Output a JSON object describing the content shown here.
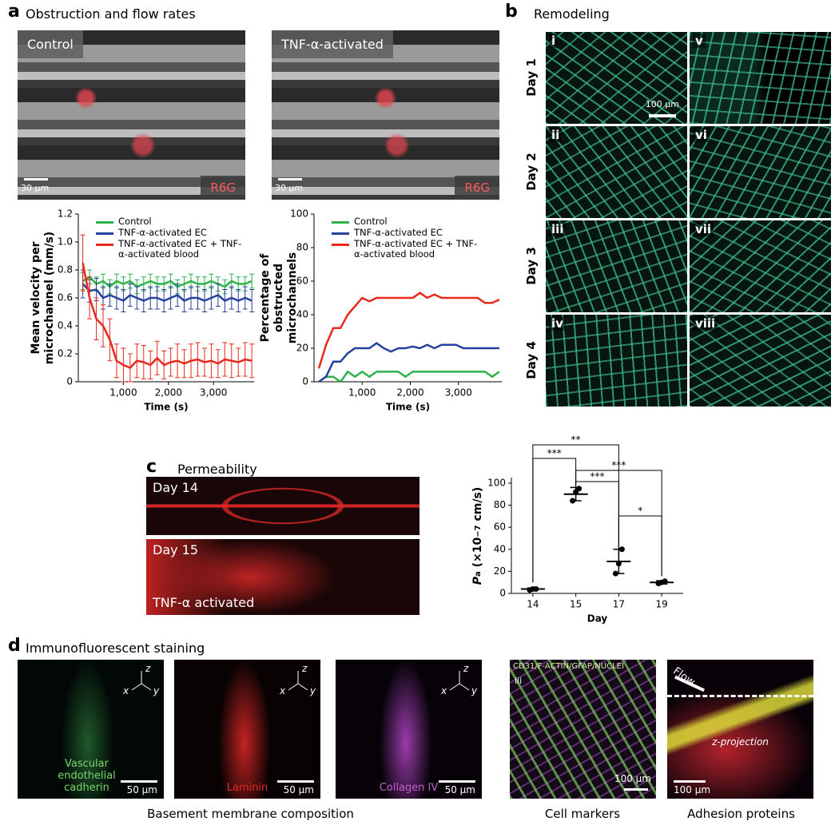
{
  "panel_a": {
    "letter": "a",
    "title": "Obstruction and flow rates",
    "images": [
      {
        "label": "Control",
        "scale": "30 μm",
        "stain": "R6G"
      },
      {
        "label": "TNF-α-activated",
        "scale": "30 μm",
        "stain": "R6G"
      }
    ]
  },
  "panel_b": {
    "letter": "b",
    "title": "Remodeling",
    "days": [
      "Day 1",
      "Day 2",
      "Day 3",
      "Day 4"
    ],
    "tiles": [
      "i",
      "ii",
      "iii",
      "iv",
      "v",
      "vi",
      "vii",
      "viii"
    ],
    "scale": "100 μm"
  },
  "panel_c": {
    "letter": "c",
    "title": "Permeability",
    "images": [
      {
        "label": "Day 14"
      },
      {
        "label": "Day 15",
        "note": "TNF-α activated"
      }
    ]
  },
  "panel_d": {
    "letter": "d",
    "title": "Immunofluorescent staining",
    "axes": [
      "z",
      "x",
      "y"
    ],
    "images": [
      {
        "label": "Vascular endothelial cadherin",
        "scale": "50 μm"
      },
      {
        "label": "Laminin",
        "scale": "50 μm"
      },
      {
        "label": "Collagen IV",
        "scale": "50 μm"
      },
      {
        "label": "iii",
        "markers": "CD31/F-ACTIN/GFAP/NUCLEI",
        "scale": "100 μm"
      },
      {
        "label": "Flow",
        "note": "z-projection",
        "scale": "100 μm"
      }
    ],
    "captions": [
      "Basement membrane composition",
      "Cell markers",
      "Adhesion proteins"
    ]
  },
  "chart_data": [
    {
      "type": "line",
      "x_label": "Time (s)",
      "y_label": "Mean velocity per microchannel (mm/s)",
      "x": [
        100,
        250,
        400,
        550,
        700,
        850,
        1000,
        1150,
        1300,
        1450,
        1600,
        1750,
        1900,
        2050,
        2200,
        2350,
        2500,
        2650,
        2800,
        2950,
        3100,
        3250,
        3400,
        3550,
        3700,
        3850
      ],
      "xlim": [
        0,
        3900
      ],
      "xticks": [
        {
          "value": 1000,
          "label": "1,000"
        },
        {
          "value": 2000,
          "label": "2,000"
        },
        {
          "value": 3000,
          "label": "3,000"
        }
      ],
      "ylim": [
        0,
        1.2
      ],
      "yticks": [
        0,
        0.2,
        0.4,
        0.6,
        0.8,
        {
          "value": 1,
          "label": "1.0"
        },
        1.2
      ],
      "series": [
        {
          "name": "Control",
          "color": "#2db34a",
          "values": [
            0.72,
            0.75,
            0.7,
            0.72,
            0.68,
            0.72,
            0.7,
            0.72,
            0.68,
            0.7,
            0.72,
            0.7,
            0.7,
            0.72,
            0.68,
            0.7,
            0.72,
            0.7,
            0.7,
            0.72,
            0.7,
            0.68,
            0.72,
            0.7,
            0.7,
            0.72
          ],
          "errors": [
            0.06,
            0.05,
            0.05,
            0.05,
            0.05,
            0.05,
            0.05,
            0.05,
            0.05,
            0.05,
            0.05,
            0.05,
            0.05,
            0.05,
            0.05,
            0.05,
            0.05,
            0.05,
            0.05,
            0.05,
            0.05,
            0.05,
            0.05,
            0.05,
            0.05,
            0.05
          ]
        },
        {
          "name": "TNF-α-activated EC",
          "color": "#2542a0",
          "values": [
            0.7,
            0.65,
            0.66,
            0.6,
            0.62,
            0.6,
            0.58,
            0.62,
            0.6,
            0.58,
            0.6,
            0.6,
            0.58,
            0.6,
            0.62,
            0.58,
            0.6,
            0.6,
            0.58,
            0.6,
            0.62,
            0.58,
            0.6,
            0.58,
            0.6,
            0.58
          ],
          "errors": [
            0.1,
            0.08,
            0.08,
            0.08,
            0.08,
            0.08,
            0.08,
            0.08,
            0.08,
            0.08,
            0.08,
            0.08,
            0.08,
            0.08,
            0.08,
            0.08,
            0.08,
            0.08,
            0.08,
            0.08,
            0.08,
            0.08,
            0.08,
            0.08,
            0.08,
            0.08
          ]
        },
        {
          "name": "TNF-α-activated EC + TNF-α-activated blood",
          "color": "#e8291c",
          "values": [
            0.85,
            0.6,
            0.45,
            0.4,
            0.3,
            0.15,
            0.12,
            0.1,
            0.15,
            0.14,
            0.12,
            0.17,
            0.12,
            0.14,
            0.15,
            0.13,
            0.15,
            0.16,
            0.14,
            0.15,
            0.13,
            0.16,
            0.15,
            0.14,
            0.16,
            0.15
          ],
          "errors": [
            0.2,
            0.15,
            0.15,
            0.15,
            0.15,
            0.12,
            0.12,
            0.1,
            0.12,
            0.12,
            0.1,
            0.12,
            0.1,
            0.1,
            0.12,
            0.1,
            0.12,
            0.12,
            0.1,
            0.12,
            0.1,
            0.12,
            0.12,
            0.1,
            0.12,
            0.12
          ]
        }
      ]
    },
    {
      "type": "line",
      "x_label": "Time (s)",
      "y_label": "Percentage of obstructed microchannels",
      "x": [
        100,
        250,
        400,
        550,
        700,
        850,
        1000,
        1150,
        1300,
        1450,
        1600,
        1750,
        1900,
        2050,
        2200,
        2350,
        2500,
        2650,
        2800,
        2950,
        3100,
        3250,
        3400,
        3550,
        3700,
        3850
      ],
      "xlim": [
        0,
        3900
      ],
      "xticks": [
        {
          "value": 1000,
          "label": "1,000"
        },
        {
          "value": 2000,
          "label": "2,000"
        },
        {
          "value": 3000,
          "label": "3,000"
        }
      ],
      "ylim": [
        0,
        100
      ],
      "yticks": [
        0,
        20,
        40,
        60,
        80,
        100
      ],
      "series": [
        {
          "name": "Control",
          "color": "#2db34a",
          "values": [
            0,
            3,
            3,
            0,
            6,
            3,
            6,
            3,
            6,
            6,
            6,
            6,
            3,
            6,
            6,
            6,
            6,
            6,
            6,
            6,
            6,
            6,
            6,
            6,
            3,
            6
          ]
        },
        {
          "name": "TNF-α-activated EC",
          "color": "#2542a0",
          "values": [
            0,
            3,
            12,
            12,
            17,
            20,
            20,
            20,
            23,
            20,
            18,
            20,
            20,
            21,
            20,
            22,
            20,
            22,
            22,
            22,
            20,
            20,
            20,
            20,
            20,
            20
          ]
        },
        {
          "name": "TNF-α-activated EC + TNF-α-activated blood",
          "color": "#e8291c",
          "values": [
            8,
            22,
            32,
            32,
            40,
            45,
            50,
            48,
            50,
            50,
            50,
            50,
            50,
            50,
            53,
            50,
            52,
            50,
            50,
            50,
            50,
            50,
            50,
            47,
            47,
            49
          ]
        }
      ]
    },
    {
      "type": "dot",
      "x_label": "Day",
      "y_label": {
        "symbol": "P",
        "subscript": "a",
        "prefix": " (×10",
        "superscript": "−7",
        "suffix": " cm/s)"
      },
      "categories": [
        "14",
        "15",
        "17",
        "19"
      ],
      "means": [
        4,
        90,
        29,
        10
      ],
      "errors": [
        1,
        6,
        11,
        1.5
      ],
      "points": [
        [
          3,
          4,
          4
        ],
        [
          84,
          92,
          95
        ],
        [
          18,
          27,
          40
        ],
        [
          9,
          10,
          11
        ]
      ],
      "ylim": [
        0,
        105
      ],
      "yticks": [
        0,
        20,
        40,
        60,
        80,
        100
      ],
      "annotations": [
        "**",
        "***",
        "***",
        "***",
        "*"
      ]
    }
  ]
}
